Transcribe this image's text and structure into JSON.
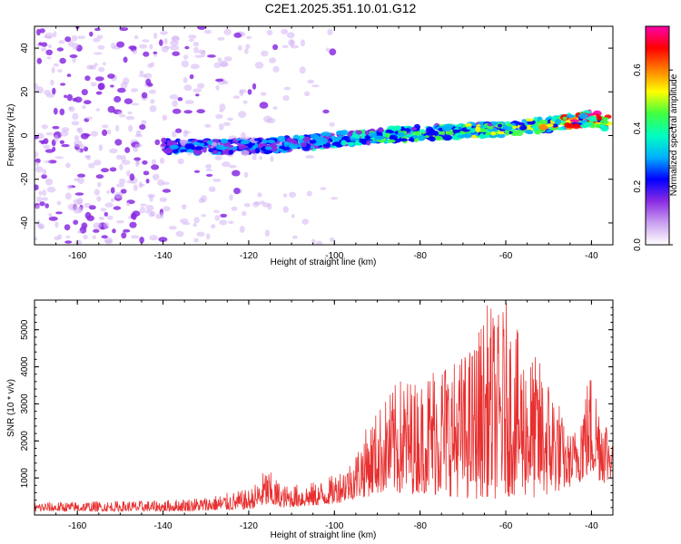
{
  "title": "C2E1.2025.351.10.01.G12",
  "chart_data": [
    {
      "type": "heatmap",
      "title": "",
      "xlabel": "Height of straight line (km)",
      "ylabel": "Frequency (Hz)",
      "xlim": [
        -170,
        -35
      ],
      "ylim": [
        -50,
        50
      ],
      "x_ticks": [
        -160,
        -140,
        -120,
        -100,
        -80,
        -60,
        -40
      ],
      "y_ticks": [
        -40,
        -20,
        0,
        20,
        40
      ],
      "colorbar": {
        "label": "Normalized spectral amplitude",
        "range": [
          0.0,
          0.75
        ],
        "ticks": [
          "0.0",
          "0.2",
          "0.4",
          "0.6"
        ],
        "tick_values": [
          0.0,
          0.2,
          0.4,
          0.6
        ],
        "colors": [
          "#ffffff",
          "#c9a0f0",
          "#8a2be2",
          "#0000ff",
          "#00b0ff",
          "#00ffc0",
          "#40ff40",
          "#ffff00",
          "#ff8000",
          "#ff0000",
          "#ff00aa"
        ]
      },
      "signal_track": {
        "x": [
          -140,
          -130,
          -120,
          -110,
          -100,
          -90,
          -80,
          -70,
          -60,
          -50,
          -40,
          -35
        ],
        "frequency": [
          -5,
          -5,
          -5,
          -4,
          -2,
          0,
          1,
          2,
          3,
          5,
          8,
          5
        ],
        "amplitude": [
          0.25,
          0.3,
          0.3,
          0.3,
          0.35,
          0.4,
          0.45,
          0.45,
          0.5,
          0.55,
          0.75,
          0.6
        ]
      }
    },
    {
      "type": "line",
      "title": "",
      "xlabel": "Height of straight line (km)",
      "ylabel": "SNR (10 * v/v)",
      "xlim": [
        -170,
        -35
      ],
      "ylim": [
        0,
        5800
      ],
      "x_ticks": [
        -160,
        -140,
        -120,
        -100,
        -80,
        -60,
        -40
      ],
      "y_ticks": [
        1000,
        2000,
        3000,
        4000,
        5000
      ],
      "color": "#e83030",
      "envelope": {
        "x": [
          -170,
          -140,
          -130,
          -120,
          -118,
          -116,
          -112,
          -104,
          -100,
          -96,
          -92,
          -88,
          -84,
          -80,
          -76,
          -72,
          -68,
          -64,
          -62,
          -60,
          -56,
          -52,
          -48,
          -46,
          -44,
          -42,
          -40,
          -38,
          -36,
          -35
        ],
        "peak": [
          350,
          400,
          500,
          700,
          900,
          1300,
          800,
          900,
          1100,
          1500,
          2500,
          3200,
          3800,
          3600,
          4400,
          4200,
          4600,
          5800,
          5400,
          5800,
          4600,
          4200,
          3400,
          2200,
          2300,
          3400,
          4000,
          3200,
          2600,
          2000
        ],
        "floor": [
          100,
          100,
          110,
          150,
          200,
          250,
          200,
          250,
          300,
          400,
          500,
          600,
          500,
          600,
          500,
          500,
          400,
          500,
          400,
          500,
          500,
          400,
          600,
          700,
          800,
          900,
          1000,
          900,
          800,
          1200
        ]
      }
    }
  ]
}
